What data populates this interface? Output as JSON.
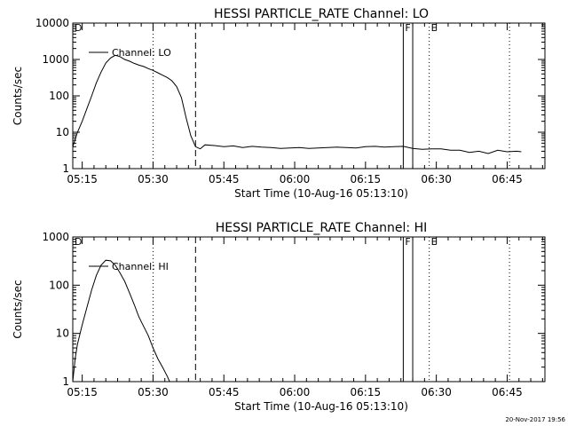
{
  "chart_data": [
    {
      "type": "line",
      "title": "HESSI PARTICLE_RATE Channel: LO",
      "xlabel": "Start Time (10-Aug-16 05:13:10)",
      "ylabel": "Counts/sec",
      "yscale": "log",
      "ylim": [
        1,
        10000
      ],
      "xlim_minutes": [
        0,
        100
      ],
      "x_tick_labels": [
        "05:15",
        "05:30",
        "05:45",
        "06:00",
        "06:15",
        "06:30",
        "06:45"
      ],
      "x_ticks_minutes": [
        2,
        17,
        32,
        47,
        62,
        77,
        92
      ],
      "y_tick_labels": [
        "1",
        "10",
        "100",
        "1000",
        "10000"
      ],
      "y_ticks": [
        1,
        10,
        100,
        1000,
        10000
      ],
      "legend": "Channel: LO",
      "series": [
        {
          "name": "Channel: LO",
          "x": [
            0,
            1,
            2,
            3,
            4,
            5,
            6,
            7,
            8,
            9,
            10,
            11,
            12,
            13,
            14,
            15,
            16,
            17,
            18,
            19,
            20,
            21,
            22,
            23,
            24,
            25,
            26,
            27,
            28,
            30,
            32,
            34,
            36,
            38,
            40,
            42,
            44,
            46,
            48,
            50,
            52,
            54,
            56,
            58,
            60,
            62,
            64,
            66,
            68,
            70,
            72,
            74,
            76,
            78,
            80,
            82,
            84,
            86,
            88,
            90,
            92,
            94,
            95
          ],
          "y": [
            4,
            10,
            20,
            45,
            100,
            230,
            450,
            800,
            1100,
            1300,
            1200,
            1000,
            900,
            780,
            700,
            640,
            560,
            500,
            430,
            370,
            320,
            260,
            180,
            90,
            25,
            8,
            4,
            3.5,
            4.5,
            4.3,
            4.0,
            4.2,
            3.8,
            4.1,
            3.9,
            3.8,
            3.6,
            3.7,
            3.8,
            3.6,
            3.7,
            3.8,
            3.9,
            3.8,
            3.7,
            4.0,
            4.1,
            3.9,
            4.0,
            4.1,
            3.6,
            3.4,
            3.5,
            3.5,
            3.2,
            3.2,
            2.8,
            3.0,
            2.6,
            3.2,
            2.9,
            3.0,
            2.9
          ]
        }
      ],
      "markers": [
        {
          "label": "D",
          "x": 0
        },
        {
          "label": "F",
          "x": 70
        },
        {
          "label": "E",
          "x": 75.5
        }
      ],
      "dotted_lines_minutes": [
        17,
        75.5,
        92.5
      ],
      "dashed_lines_minutes": [
        26
      ],
      "solid_lines_minutes": [
        70,
        72
      ]
    },
    {
      "type": "line",
      "title": "HESSI PARTICLE_RATE Channel: HI",
      "xlabel": "Start Time (10-Aug-16 05:13:10)",
      "ylabel": "Counts/sec",
      "yscale": "log",
      "ylim": [
        1,
        1000
      ],
      "xlim_minutes": [
        0,
        100
      ],
      "x_tick_labels": [
        "05:15",
        "05:30",
        "05:45",
        "06:00",
        "06:15",
        "06:30",
        "06:45"
      ],
      "x_ticks_minutes": [
        2,
        17,
        32,
        47,
        62,
        77,
        92
      ],
      "y_tick_labels": [
        "1",
        "10",
        "100",
        "1000"
      ],
      "y_ticks": [
        1,
        10,
        100,
        1000
      ],
      "legend": "Channel: HI",
      "series": [
        {
          "name": "Channel: HI",
          "x": [
            0,
            0.5,
            1,
            2,
            3,
            4,
            5,
            6,
            7,
            8,
            9,
            10,
            11,
            12,
            13,
            14,
            15,
            16,
            17,
            18,
            19,
            20,
            20.5
          ],
          "y": [
            1,
            3,
            6,
            15,
            35,
            80,
            160,
            260,
            330,
            320,
            260,
            180,
            120,
            70,
            40,
            22,
            14,
            9,
            5,
            3,
            2,
            1.3,
            1
          ]
        }
      ],
      "markers": [
        {
          "label": "D",
          "x": 0
        },
        {
          "label": "F",
          "x": 70
        },
        {
          "label": "E",
          "x": 75.5
        }
      ],
      "dotted_lines_minutes": [
        17,
        75.5,
        92.5
      ],
      "dashed_lines_minutes": [
        26
      ],
      "solid_lines_minutes": [
        70,
        72
      ]
    }
  ],
  "footer": {
    "timestamp": "20-Nov-2017 19:56"
  }
}
